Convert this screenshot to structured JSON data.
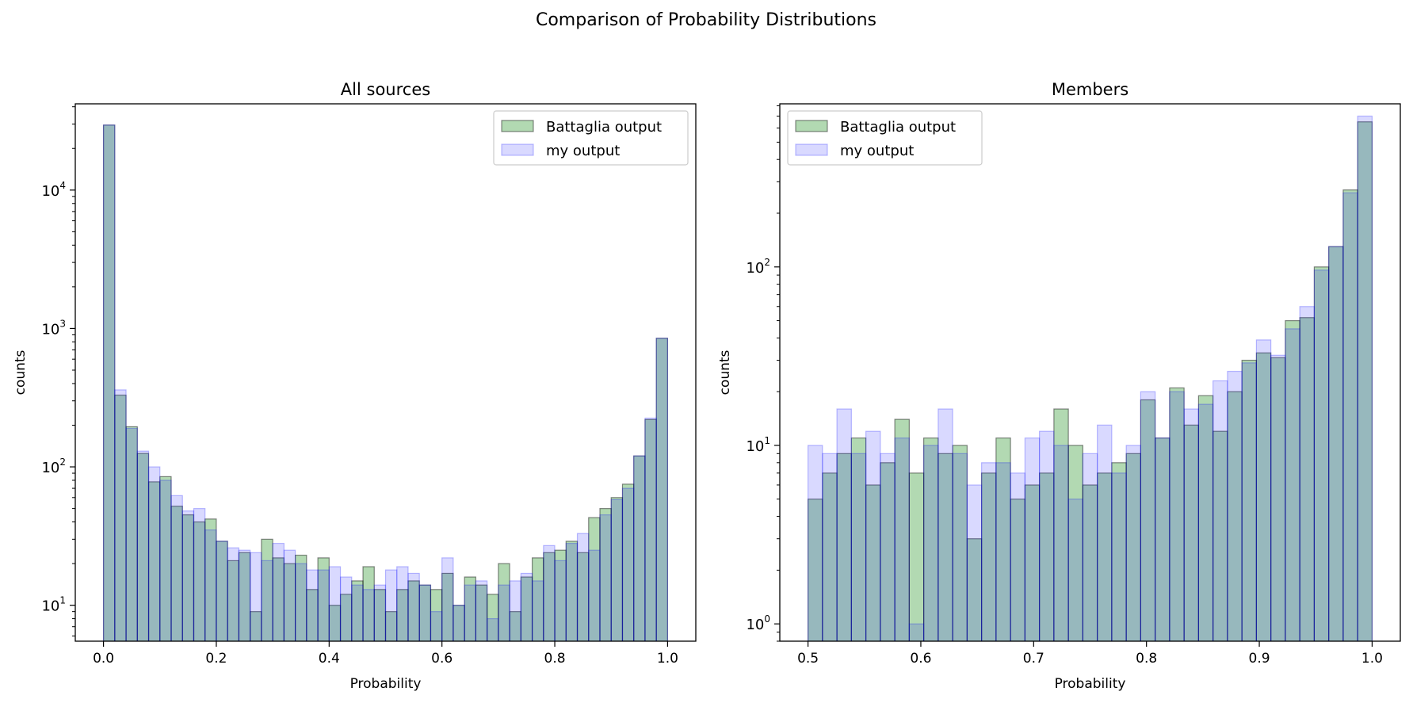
{
  "figure": {
    "suptitle": "Comparison of Probability Distributions"
  },
  "colors": {
    "battaglia_fill": "#008000",
    "mine_fill": "#0000ff",
    "overlap_look": "#94b0b4",
    "edge": "#000000"
  },
  "chart_data": [
    {
      "type": "bar",
      "title": "All sources",
      "xlabel": "Probability",
      "ylabel": "counts",
      "yscale": "log",
      "xlim": [
        -0.05,
        1.05
      ],
      "ylim": [
        5.5,
        42000
      ],
      "xticks": [
        0.0,
        0.2,
        0.4,
        0.6,
        0.8,
        1.0
      ],
      "xtick_labels": [
        "0.0",
        "0.2",
        "0.4",
        "0.6",
        "0.8",
        "1.0"
      ],
      "yticks": [
        10,
        100,
        1000,
        10000
      ],
      "ytick_labels": [
        {
          "base": "10",
          "exp": "1"
        },
        {
          "base": "10",
          "exp": "2"
        },
        {
          "base": "10",
          "exp": "3"
        },
        {
          "base": "10",
          "exp": "4"
        }
      ],
      "legend_position": "top-right",
      "bin_start": 0.0,
      "bin_end": 1.0,
      "series": [
        {
          "name": "Battaglia output",
          "color": "#008000",
          "values": [
            29500,
            330,
            195,
            125,
            78,
            85,
            52,
            45,
            40,
            42,
            29,
            21,
            24,
            9,
            30,
            22,
            20,
            23,
            13,
            22,
            10,
            12,
            15,
            19,
            13,
            9,
            13,
            15,
            14,
            13,
            17,
            10,
            16,
            14,
            12,
            20,
            9,
            16,
            22,
            24,
            25,
            29,
            24,
            43,
            50,
            60,
            75,
            120,
            220,
            850
          ]
        },
        {
          "name": "my output",
          "color": "#0000ff",
          "values": [
            29500,
            360,
            190,
            130,
            100,
            80,
            62,
            48,
            50,
            35,
            29,
            26,
            25,
            24,
            21,
            28,
            25,
            20,
            18,
            18,
            19,
            16,
            14,
            13,
            14,
            18,
            19,
            17,
            14,
            9,
            22,
            10,
            14,
            15,
            8,
            14,
            15,
            17,
            15,
            27,
            21,
            28,
            33,
            25,
            45,
            58,
            70,
            120,
            225,
            850
          ]
        }
      ]
    },
    {
      "type": "bar",
      "title": "Members",
      "xlabel": "Probability",
      "ylabel": "counts",
      "yscale": "log",
      "xlim": [
        0.475,
        1.025
      ],
      "ylim": [
        0.8,
        820
      ],
      "xticks": [
        0.5,
        0.6,
        0.7,
        0.8,
        0.9,
        1.0
      ],
      "xtick_labels": [
        "0.5",
        "0.6",
        "0.7",
        "0.8",
        "0.9",
        "1.0"
      ],
      "yticks": [
        1,
        10,
        100
      ],
      "ytick_labels": [
        {
          "base": "10",
          "exp": "0"
        },
        {
          "base": "10",
          "exp": "1"
        },
        {
          "base": "10",
          "exp": "2"
        }
      ],
      "legend_position": "top-left",
      "bin_start": 0.5,
      "bin_end": 1.0,
      "series": [
        {
          "name": "Battaglia output",
          "color": "#008000",
          "values": [
            5,
            7,
            9,
            11,
            6,
            8,
            14,
            7,
            11,
            9,
            10,
            3,
            7,
            11,
            5,
            6,
            7,
            16,
            10,
            6,
            7,
            8,
            9,
            18,
            11,
            21,
            13,
            19,
            12,
            20,
            30,
            33,
            31,
            50,
            52,
            100,
            130,
            270,
            650
          ]
        },
        {
          "name": "my output",
          "color": "#0000ff",
          "values": [
            10,
            9,
            16,
            9,
            12,
            9,
            11,
            1,
            10,
            16,
            9,
            6,
            8,
            8,
            7,
            11,
            12,
            10,
            5,
            9,
            13,
            7,
            10,
            20,
            11,
            20,
            16,
            17,
            23,
            26,
            29,
            39,
            32,
            45,
            60,
            96,
            130,
            260,
            700
          ]
        }
      ]
    }
  ]
}
